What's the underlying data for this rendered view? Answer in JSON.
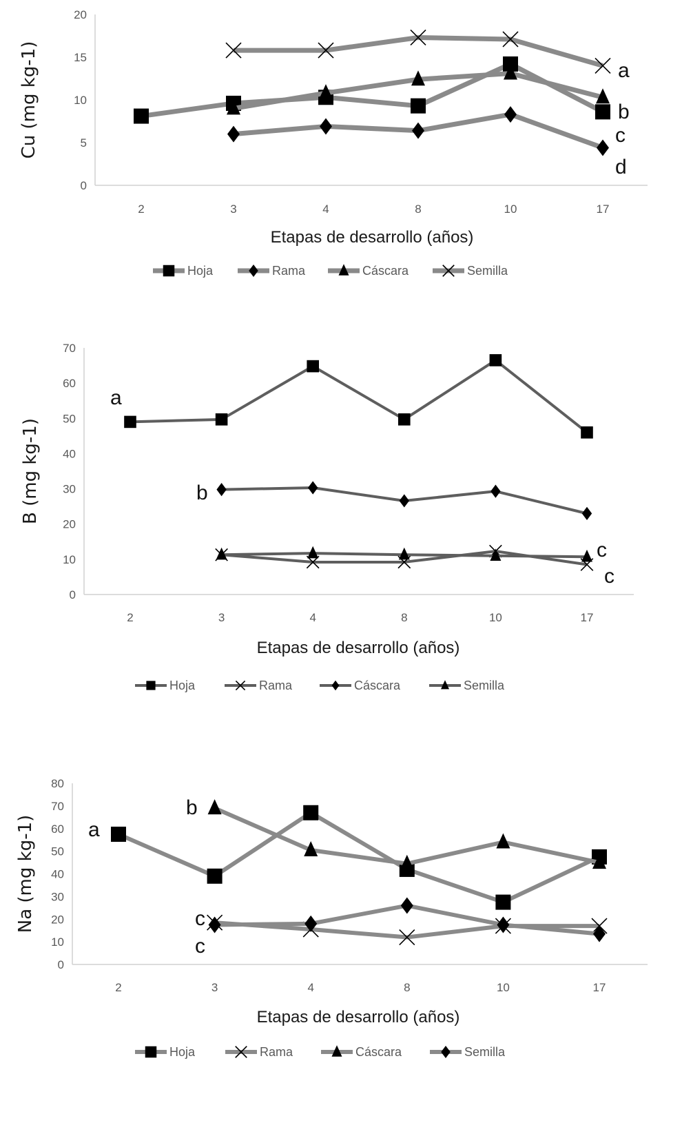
{
  "chart_data": [
    {
      "type": "line",
      "title": "",
      "xlabel": "Etapas de desarrollo (años)",
      "ylabel": "Cu (mg kg-1)",
      "ylabel_base": "Cu (mg kg",
      "ylabel_sup": "-1",
      "ylabel_close": ")",
      "categories": [
        "2",
        "3",
        "4",
        "8",
        "10",
        "17"
      ],
      "ylim": [
        0,
        20
      ],
      "yticks": [
        0,
        5,
        10,
        15,
        20
      ],
      "grid": false,
      "legend_position": "bottom",
      "line_color": "#8a8a8a",
      "series": [
        {
          "name": "Hoja",
          "marker": "square",
          "values": [
            8.1,
            9.6,
            10.3,
            9.3,
            14.2,
            8.6
          ]
        },
        {
          "name": "Rama",
          "marker": "diamond",
          "values": [
            null,
            6.0,
            6.9,
            6.4,
            8.3,
            4.4
          ]
        },
        {
          "name": "Cáscara",
          "marker": "triangle",
          "values": [
            null,
            9.0,
            10.8,
            12.4,
            13.1,
            10.3
          ]
        },
        {
          "name": "Semilla",
          "marker": "x",
          "values": [
            null,
            15.8,
            15.8,
            17.3,
            17.1,
            14.0
          ]
        }
      ],
      "annotations": [
        "a",
        "b",
        "c",
        "d"
      ]
    },
    {
      "type": "line",
      "title": "",
      "xlabel": "Etapas de desarrollo (años)",
      "ylabel": "B (mg kg-1)",
      "ylabel_base": "B (mg kg",
      "ylabel_sup": "-1",
      "ylabel_close": ")",
      "categories": [
        "2",
        "3",
        "4",
        "8",
        "10",
        "17"
      ],
      "ylim": [
        0,
        70
      ],
      "yticks": [
        0,
        10,
        20,
        30,
        40,
        50,
        60,
        70
      ],
      "grid": false,
      "legend_position": "bottom",
      "line_color": "#5e5e5e",
      "series": [
        {
          "name": "Hoja",
          "marker": "square",
          "values": [
            49.0,
            49.7,
            64.8,
            49.7,
            66.5,
            46.0
          ]
        },
        {
          "name": "Rama",
          "marker": "x",
          "values": [
            null,
            11.3,
            9.2,
            9.2,
            12.3,
            8.5
          ]
        },
        {
          "name": "Cáscara",
          "marker": "diamond",
          "values": [
            null,
            29.8,
            30.3,
            26.6,
            29.3,
            23.0
          ]
        },
        {
          "name": "Semilla",
          "marker": "triangle",
          "values": [
            null,
            11.3,
            11.7,
            11.3,
            11.0,
            10.7
          ]
        }
      ],
      "annotations": [
        "a",
        "b",
        "c",
        "c"
      ]
    },
    {
      "type": "line",
      "title": "",
      "xlabel": "Etapas de desarrollo (años)",
      "ylabel": "Na (mg kg-1)",
      "ylabel_base": "Na (mg kg",
      "ylabel_sup": "-1",
      "ylabel_close": ")",
      "categories": [
        "2",
        "3",
        "4",
        "8",
        "10",
        "17"
      ],
      "ylim": [
        0,
        80
      ],
      "yticks": [
        0,
        10,
        20,
        30,
        40,
        50,
        60,
        70,
        80
      ],
      "grid": false,
      "legend_position": "bottom",
      "line_color": "#8a8a8a",
      "series": [
        {
          "name": "Hoja",
          "marker": "square",
          "values": [
            57.5,
            39.0,
            67.0,
            42.0,
            27.5,
            47.5
          ]
        },
        {
          "name": "Rama",
          "marker": "x",
          "values": [
            null,
            18.5,
            15.5,
            12.0,
            17.0,
            17.0
          ]
        },
        {
          "name": "Cáscara",
          "marker": "triangle",
          "values": [
            null,
            69.0,
            50.5,
            44.5,
            54.0,
            45.0
          ]
        },
        {
          "name": "Semilla",
          "marker": "diamond",
          "values": [
            null,
            17.5,
            18.0,
            26.0,
            17.5,
            13.5
          ]
        }
      ],
      "annotations": [
        "a",
        "b",
        "c",
        "c"
      ]
    }
  ]
}
